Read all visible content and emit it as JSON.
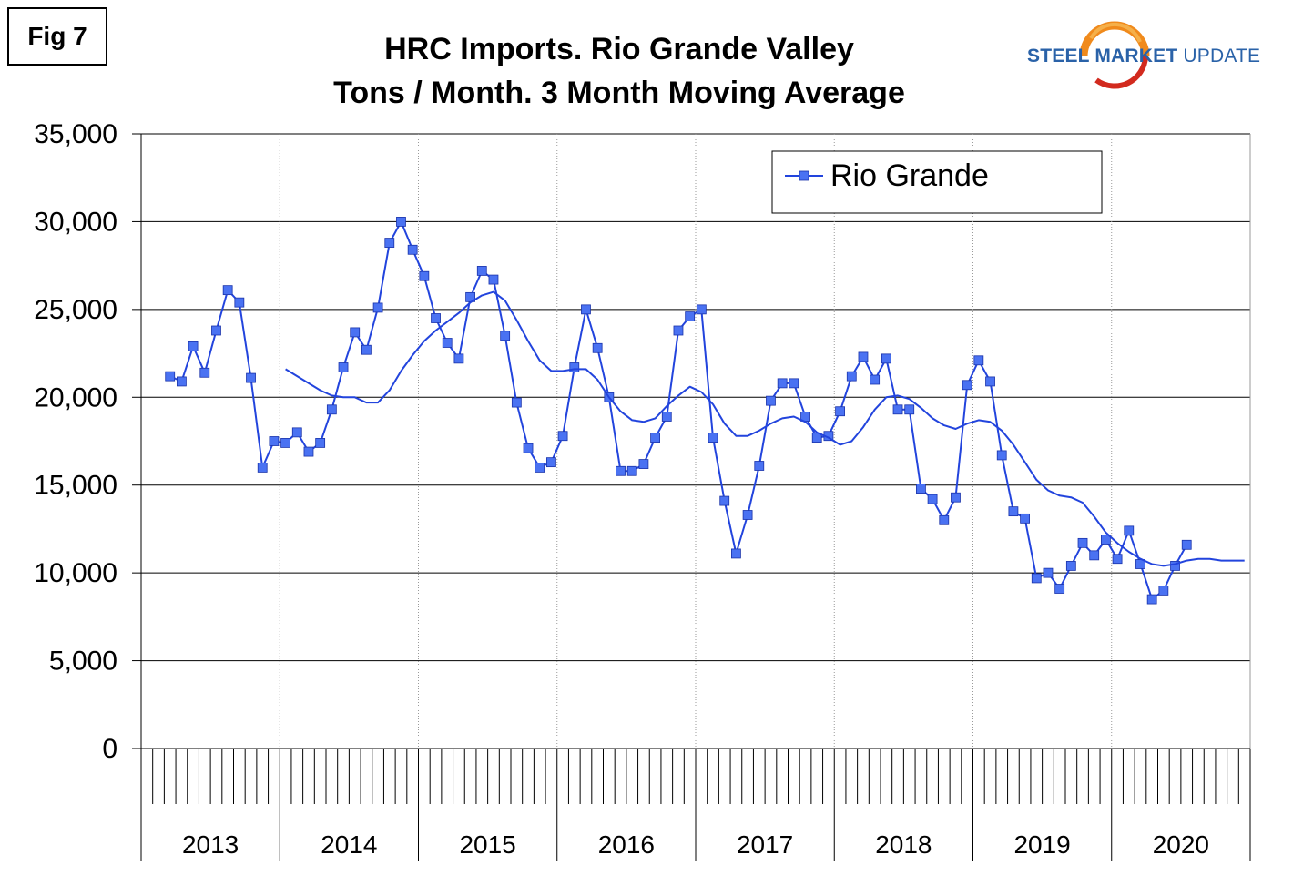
{
  "figure_label": "Fig 7",
  "logo": {
    "word1": "STEEL",
    "word2": "MARKET",
    "word3": "UPDATE",
    "colors": {
      "blue": "#2a62a8",
      "orange": "#f08a1c",
      "red": "#d22a1e"
    }
  },
  "chart_data": {
    "type": "line",
    "title": "HRC Imports. Rio Grande Valley",
    "subtitle": "Tons / Month. 3 Month Moving Average",
    "xlabel": "",
    "ylabel": "",
    "ylim": [
      0,
      35000
    ],
    "y_ticks": [
      0,
      5000,
      10000,
      15000,
      20000,
      25000,
      30000,
      35000
    ],
    "y_tick_labels": [
      "0",
      "5,000",
      "10,000",
      "15,000",
      "20,000",
      "25,000",
      "30,000",
      "35,000"
    ],
    "x_start": "2013-01",
    "x_end": "2020-12",
    "year_labels": [
      "2013",
      "2014",
      "2015",
      "2016",
      "2017",
      "2018",
      "2019",
      "2020"
    ],
    "grid": true,
    "legend": {
      "position": "top-right",
      "entries": [
        "Rio Grande"
      ]
    },
    "series": [
      {
        "name": "Rio Grande",
        "color": "#2244dd",
        "marker": "square",
        "marker_color": "#4a72f2",
        "months": [
          "2013-03",
          "2013-04",
          "2013-05",
          "2013-06",
          "2013-07",
          "2013-08",
          "2013-09",
          "2013-10",
          "2013-11",
          "2013-12",
          "2014-01",
          "2014-02",
          "2014-03",
          "2014-04",
          "2014-05",
          "2014-06",
          "2014-07",
          "2014-08",
          "2014-09",
          "2014-10",
          "2014-11",
          "2014-12",
          "2015-01",
          "2015-02",
          "2015-03",
          "2015-04",
          "2015-05",
          "2015-06",
          "2015-07",
          "2015-08",
          "2015-09",
          "2015-10",
          "2015-11",
          "2015-12",
          "2016-01",
          "2016-02",
          "2016-03",
          "2016-04",
          "2016-05",
          "2016-06",
          "2016-07",
          "2016-08",
          "2016-09",
          "2016-10",
          "2016-11",
          "2016-12",
          "2017-01",
          "2017-02",
          "2017-03",
          "2017-04",
          "2017-05",
          "2017-06",
          "2017-07",
          "2017-08",
          "2017-09",
          "2017-10",
          "2017-11",
          "2017-12",
          "2018-01",
          "2018-02",
          "2018-03",
          "2018-04",
          "2018-05",
          "2018-06",
          "2018-07",
          "2018-08",
          "2018-09",
          "2018-10",
          "2018-11",
          "2018-12",
          "2019-01",
          "2019-02",
          "2019-03",
          "2019-04",
          "2019-05",
          "2019-06",
          "2019-07",
          "2019-08",
          "2019-09",
          "2019-10",
          "2019-11",
          "2019-12",
          "2020-01",
          "2020-02",
          "2020-03",
          "2020-04",
          "2020-05",
          "2020-06",
          "2020-07"
        ],
        "values": [
          21200,
          20900,
          22900,
          21400,
          23800,
          26100,
          25400,
          21100,
          16000,
          17500,
          17400,
          18000,
          16900,
          17400,
          19300,
          21700,
          23700,
          22700,
          25100,
          28800,
          30000,
          28400,
          26900,
          24500,
          23100,
          22200,
          25700,
          27200,
          26700,
          23500,
          19700,
          17100,
          16000,
          16300,
          17800,
          21700,
          25000,
          22800,
          20000,
          15800,
          15800,
          16200,
          17700,
          18900,
          23800,
          24600,
          25000,
          17700,
          14100,
          11100,
          13300,
          16100,
          19800,
          20800,
          20800,
          18900,
          17700,
          17800,
          19200,
          21200,
          22300,
          21000,
          22200,
          19300,
          19300,
          14800,
          14200,
          13000,
          14300,
          20700,
          22100,
          20900,
          16700,
          13500,
          13100,
          9700,
          10000,
          9100,
          10400,
          11700,
          11000,
          11900,
          10800,
          12400,
          10500,
          8500,
          9000,
          10400,
          11600
        ]
      },
      {
        "name": "",
        "color": "#2244dd",
        "marker": "none",
        "months": [
          "2014-01",
          "2014-02",
          "2014-03",
          "2014-04",
          "2014-05",
          "2014-06",
          "2014-07",
          "2014-08",
          "2014-09",
          "2014-10",
          "2014-11",
          "2014-12",
          "2015-01",
          "2015-02",
          "2015-03",
          "2015-04",
          "2015-05",
          "2015-06",
          "2015-07",
          "2015-08",
          "2015-09",
          "2015-10",
          "2015-11",
          "2015-12",
          "2016-01",
          "2016-02",
          "2016-03",
          "2016-04",
          "2016-05",
          "2016-06",
          "2016-07",
          "2016-08",
          "2016-09",
          "2016-10",
          "2016-11",
          "2016-12",
          "2017-01",
          "2017-02",
          "2017-03",
          "2017-04",
          "2017-05",
          "2017-06",
          "2017-07",
          "2017-08",
          "2017-09",
          "2017-10",
          "2017-11",
          "2017-12",
          "2018-01",
          "2018-02",
          "2018-03",
          "2018-04",
          "2018-05",
          "2018-06",
          "2018-07",
          "2018-08",
          "2018-09",
          "2018-10",
          "2018-11",
          "2018-12",
          "2019-01",
          "2019-02",
          "2019-03",
          "2019-04",
          "2019-05",
          "2019-06",
          "2019-07",
          "2019-08",
          "2019-09",
          "2019-10",
          "2019-11",
          "2019-12",
          "2020-01",
          "2020-02",
          "2020-03",
          "2020-04",
          "2020-05",
          "2020-06",
          "2020-07",
          "2020-08",
          "2020-09",
          "2020-10",
          "2020-11",
          "2020-12"
        ],
        "values": [
          21600,
          21200,
          20800,
          20400,
          20100,
          20000,
          20000,
          19700,
          19700,
          20400,
          21500,
          22400,
          23200,
          23800,
          24300,
          24800,
          25400,
          25800,
          26000,
          25500,
          24400,
          23200,
          22100,
          21500,
          21500,
          21600,
          21600,
          21000,
          20000,
          19200,
          18700,
          18600,
          18800,
          19500,
          20100,
          20600,
          20300,
          19600,
          18500,
          17800,
          17800,
          18100,
          18500,
          18800,
          18900,
          18600,
          18000,
          17700,
          17300,
          17500,
          18300,
          19300,
          20000,
          20100,
          19900,
          19400,
          18800,
          18400,
          18200,
          18500,
          18700,
          18600,
          18100,
          17300,
          16300,
          15300,
          14700,
          14400,
          14300,
          14000,
          13200,
          12300,
          11700,
          11200,
          10800,
          10500,
          10400,
          10500,
          10700,
          10800,
          10800,
          10700,
          10700,
          10700
        ]
      }
    ]
  }
}
